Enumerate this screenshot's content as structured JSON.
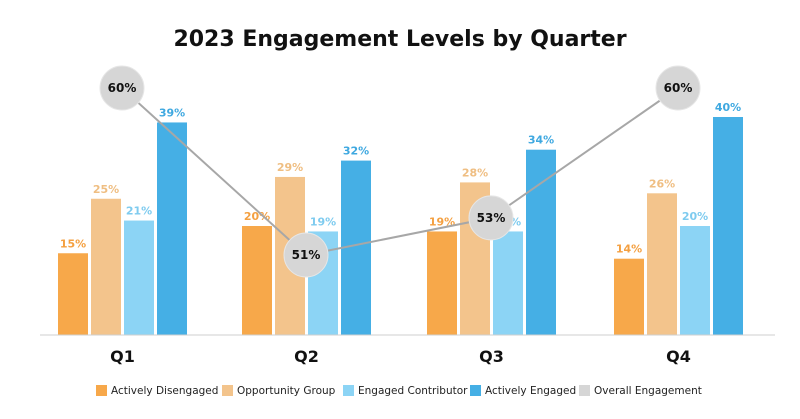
{
  "chart_data": {
    "type": "bar",
    "title": "2023 Engagement Levels by Quarter",
    "categories": [
      "Q1",
      "Q2",
      "Q3",
      "Q4"
    ],
    "ylim": [
      0,
      45
    ],
    "grid": false,
    "legend_position": "bottom",
    "series": [
      {
        "name": "Actively Disengaged",
        "values": [
          15,
          20,
          19,
          14
        ],
        "labels": [
          "15%",
          "20%",
          "19%",
          "14%"
        ],
        "color": "#F7A84A",
        "label_color": "#F4A041"
      },
      {
        "name": "Opportunity Group",
        "values": [
          25,
          29,
          28,
          26
        ],
        "labels": [
          "25%",
          "29%",
          "28%",
          "26%"
        ],
        "color": "#F3C48C",
        "label_color": "#EFBE82"
      },
      {
        "name": "Engaged Contributor",
        "values": [
          21,
          19,
          19,
          20
        ],
        "labels": [
          "21%",
          "19%",
          "19%",
          "20%"
        ],
        "color": "#8CD4F5",
        "label_color": "#7ECBEF"
      },
      {
        "name": "Actively Engaged",
        "values": [
          39,
          32,
          34,
          40
        ],
        "labels": [
          "39%",
          "32%",
          "34%",
          "40%"
        ],
        "color": "#45AFE5",
        "label_color": "#3EA8E0"
      }
    ],
    "line": {
      "name": "Overall Engagement",
      "values": [
        60,
        51,
        53,
        60
      ],
      "labels": [
        "60%",
        "51%",
        "53%",
        "60%"
      ],
      "ylim": [
        40,
        65
      ],
      "color": "#A7A7A7",
      "bubble_color": "#D6D6D6"
    }
  }
}
